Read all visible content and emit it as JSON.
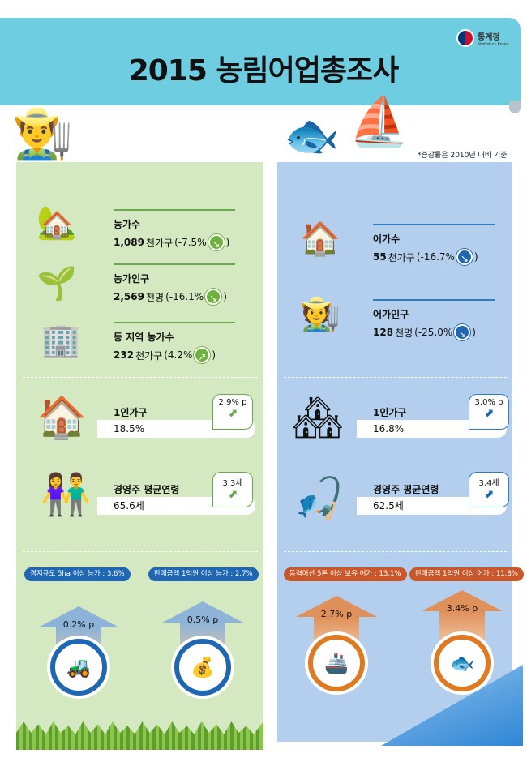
{
  "header": {
    "title": "2015 농림어업총조사",
    "logo_name": "통계청",
    "logo_sub": "Statistics Korea",
    "note": "*증감률은 2010년 대비 기준"
  },
  "colors": {
    "banner": "#6fcde2",
    "farm_panel": "#d4e8c1",
    "fish_panel": "#b4cfee",
    "farm_accent": "#6aa84f",
    "fish_accent": "#1f66b3",
    "fish_badge": "#c9572a"
  },
  "farm": {
    "stats": [
      {
        "label": "농가수",
        "value": "1,089",
        "unit": "천가구",
        "change": "(-7.5%",
        "close": ")",
        "direction": "down"
      },
      {
        "label": "농가인구",
        "value": "2,569",
        "unit": "천명",
        "change": "(-16.1%",
        "close": ")",
        "direction": "down"
      },
      {
        "label": "동 지역 농가수",
        "value": "232",
        "unit": "천가구",
        "change": "(4.2%",
        "close": ")",
        "direction": "up"
      }
    ],
    "single": {
      "label": "1인가구",
      "value": "18.5%",
      "change": "2.9% p"
    },
    "age": {
      "label": "경영주 평균연령",
      "value": "65.6세",
      "change": "3.3세"
    },
    "badges": [
      {
        "text": "경지규모 5ha 이상 농가 : 3.6%",
        "change": "0.2% p"
      },
      {
        "text": "판매금액 1억원 이상 농가 : 2.7%",
        "change": "0.5% p"
      }
    ]
  },
  "fish": {
    "stats": [
      {
        "label": "어가수",
        "value": "55",
        "unit": "천가구",
        "change": "(-16.7%",
        "close": ")",
        "direction": "down"
      },
      {
        "label": "어가인구",
        "value": "128",
        "unit": "천명",
        "change": "(-25.0%",
        "close": ")",
        "direction": "down"
      }
    ],
    "single": {
      "label": "1인가구",
      "value": "16.8%",
      "change": "3.0% p"
    },
    "age": {
      "label": "경영주 평균연령",
      "value": "62.5세",
      "change": "3.4세"
    },
    "badges": [
      {
        "text": "동력어선 5톤 이상 보유 어가 : 13.1%",
        "change": "2.7% p"
      },
      {
        "text": "판매금액 1억원 이상 어가 : 11.8%",
        "change": "3.4% p"
      }
    ]
  }
}
